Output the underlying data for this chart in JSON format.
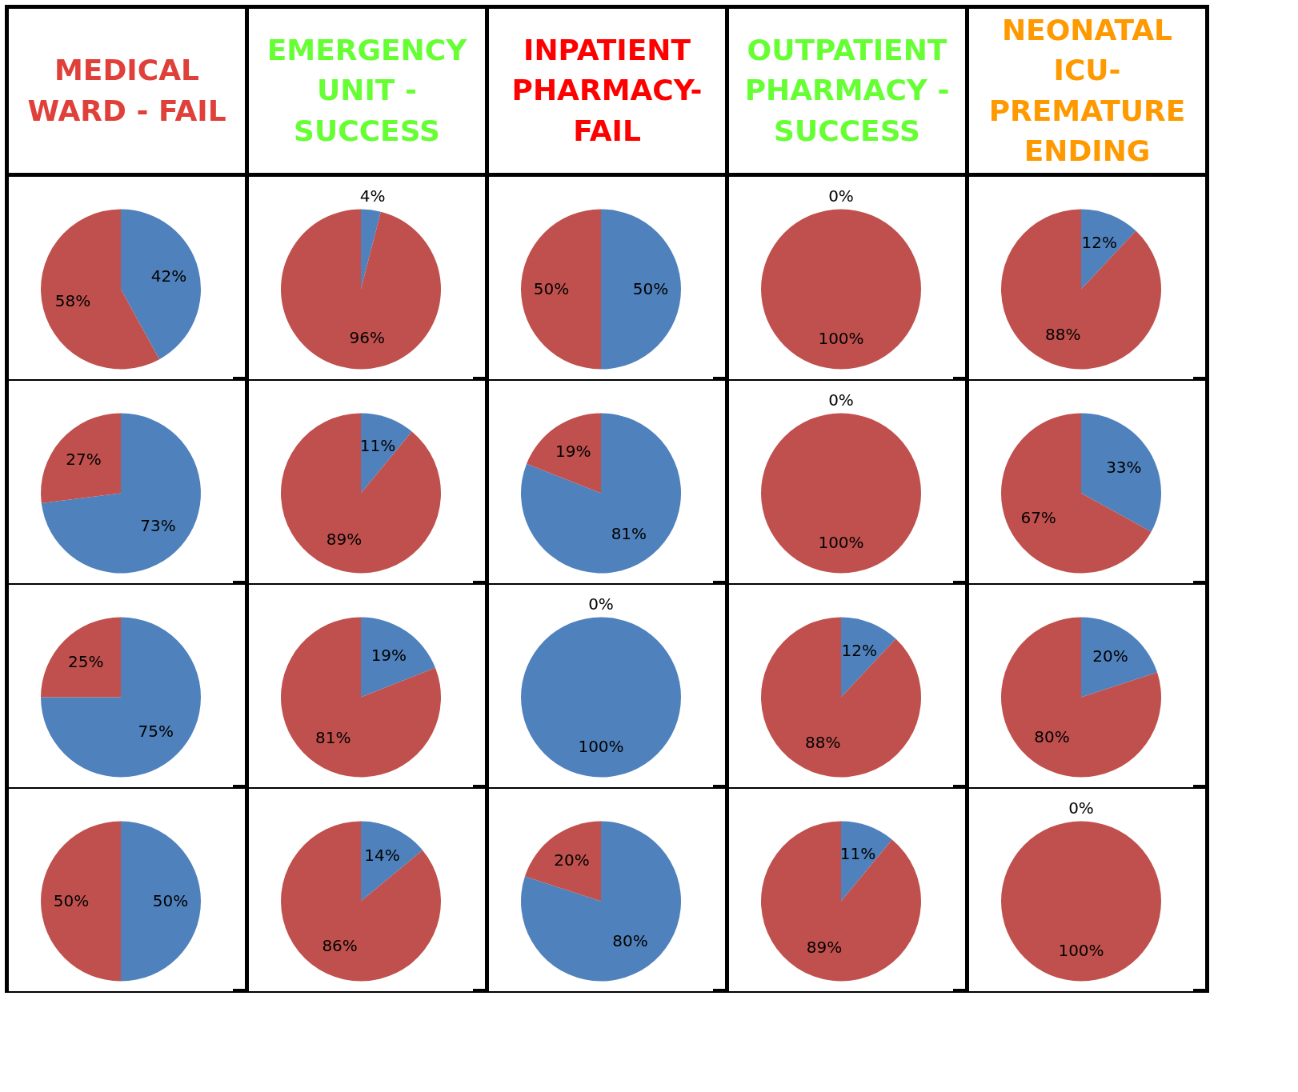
{
  "chart_data": [
    {
      "type": "other",
      "title": "MEDICAL WARD - FAIL",
      "color": "#e0403a"
    },
    {
      "type": "other",
      "title": "EMERGENCY UNIT - SUCCESS",
      "color": "#66ff33"
    },
    {
      "type": "other",
      "title": "INPATIENT PHARMACY- FAIL",
      "color": "#ff0000"
    },
    {
      "type": "other",
      "title": "OUTPATIENT PHARMACY - SUCCESS",
      "color": "#66ff33"
    },
    {
      "type": "other",
      "title": "NEONATAL ICU- PREMATURE ENDING",
      "color": "#ff9900"
    },
    {
      "type": "pie",
      "categories": [
        null,
        null
      ],
      "values": [
        42,
        58
      ],
      "colors": [
        "#4f81bd",
        "#c0504d"
      ],
      "value_labels": [
        "42%",
        "58%"
      ]
    },
    {
      "type": "pie",
      "categories": [
        null,
        null
      ],
      "values": [
        4,
        96
      ],
      "colors": [
        "#4f81bd",
        "#c0504d"
      ],
      "value_labels": [
        "4%",
        "96%"
      ]
    },
    {
      "type": "pie",
      "categories": [
        null,
        null
      ],
      "values": [
        50,
        50
      ],
      "colors": [
        "#4f81bd",
        "#c0504d"
      ],
      "value_labels": [
        "50%",
        "50%"
      ]
    },
    {
      "type": "pie",
      "categories": [
        null,
        null
      ],
      "values": [
        0,
        100
      ],
      "colors": [
        "#4f81bd",
        "#c0504d"
      ],
      "value_labels": [
        "0%",
        "100%"
      ]
    },
    {
      "type": "pie",
      "categories": [
        null,
        null
      ],
      "values": [
        12,
        88
      ],
      "colors": [
        "#4f81bd",
        "#c0504d"
      ],
      "value_labels": [
        "12%",
        "88%"
      ]
    },
    {
      "type": "pie",
      "categories": [
        null,
        null
      ],
      "values": [
        73,
        27
      ],
      "colors": [
        "#4f81bd",
        "#c0504d"
      ],
      "value_labels": [
        "73%",
        "27%"
      ]
    },
    {
      "type": "pie",
      "categories": [
        null,
        null
      ],
      "values": [
        11,
        89
      ],
      "colors": [
        "#4f81bd",
        "#c0504d"
      ],
      "value_labels": [
        "11%",
        "89%"
      ]
    },
    {
      "type": "pie",
      "categories": [
        null,
        null
      ],
      "values": [
        81,
        19
      ],
      "colors": [
        "#4f81bd",
        "#c0504d"
      ],
      "value_labels": [
        "81%",
        "19%"
      ]
    },
    {
      "type": "pie",
      "categories": [
        null,
        null
      ],
      "values": [
        0,
        100
      ],
      "colors": [
        "#4f81bd",
        "#c0504d"
      ],
      "value_labels": [
        "0%",
        "100%"
      ]
    },
    {
      "type": "pie",
      "categories": [
        null,
        null
      ],
      "values": [
        33,
        67
      ],
      "colors": [
        "#4f81bd",
        "#c0504d"
      ],
      "value_labels": [
        "33%",
        "67%"
      ]
    },
    {
      "type": "pie",
      "categories": [
        null,
        null
      ],
      "values": [
        75,
        25
      ],
      "colors": [
        "#4f81bd",
        "#c0504d"
      ],
      "value_labels": [
        "75%",
        "25%"
      ]
    },
    {
      "type": "pie",
      "categories": [
        null,
        null
      ],
      "values": [
        19,
        81
      ],
      "colors": [
        "#4f81bd",
        "#c0504d"
      ],
      "value_labels": [
        "19%",
        "81%"
      ]
    },
    {
      "type": "pie",
      "categories": [
        null,
        null
      ],
      "values": [
        100,
        0
      ],
      "colors": [
        "#4f81bd",
        "#c0504d"
      ],
      "value_labels": [
        "100%",
        "0%"
      ]
    },
    {
      "type": "pie",
      "categories": [
        null,
        null
      ],
      "values": [
        12,
        88
      ],
      "colors": [
        "#4f81bd",
        "#c0504d"
      ],
      "value_labels": [
        "12%",
        "88%"
      ]
    },
    {
      "type": "pie",
      "categories": [
        null,
        null
      ],
      "values": [
        20,
        80
      ],
      "colors": [
        "#4f81bd",
        "#c0504d"
      ],
      "value_labels": [
        "20%",
        "80%"
      ]
    },
    {
      "type": "pie",
      "categories": [
        null,
        null
      ],
      "values": [
        50,
        50
      ],
      "colors": [
        "#4f81bd",
        "#c0504d"
      ],
      "value_labels": [
        "50%",
        "50%"
      ]
    },
    {
      "type": "pie",
      "categories": [
        null,
        null
      ],
      "values": [
        14,
        86
      ],
      "colors": [
        "#4f81bd",
        "#c0504d"
      ],
      "value_labels": [
        "14%",
        "86%"
      ]
    },
    {
      "type": "pie",
      "categories": [
        null,
        null
      ],
      "values": [
        80,
        20
      ],
      "colors": [
        "#4f81bd",
        "#c0504d"
      ],
      "value_labels": [
        "80%",
        "20%"
      ]
    },
    {
      "type": "pie",
      "categories": [
        null,
        null
      ],
      "values": [
        11,
        89
      ],
      "colors": [
        "#4f81bd",
        "#c0504d"
      ],
      "value_labels": [
        "11%",
        "89%"
      ]
    },
    {
      "type": "pie",
      "categories": [
        null,
        null
      ],
      "values": [
        0,
        100
      ],
      "colors": [
        "#4f81bd",
        "#c0504d"
      ],
      "value_labels": [
        "0%",
        "100%"
      ]
    }
  ]
}
